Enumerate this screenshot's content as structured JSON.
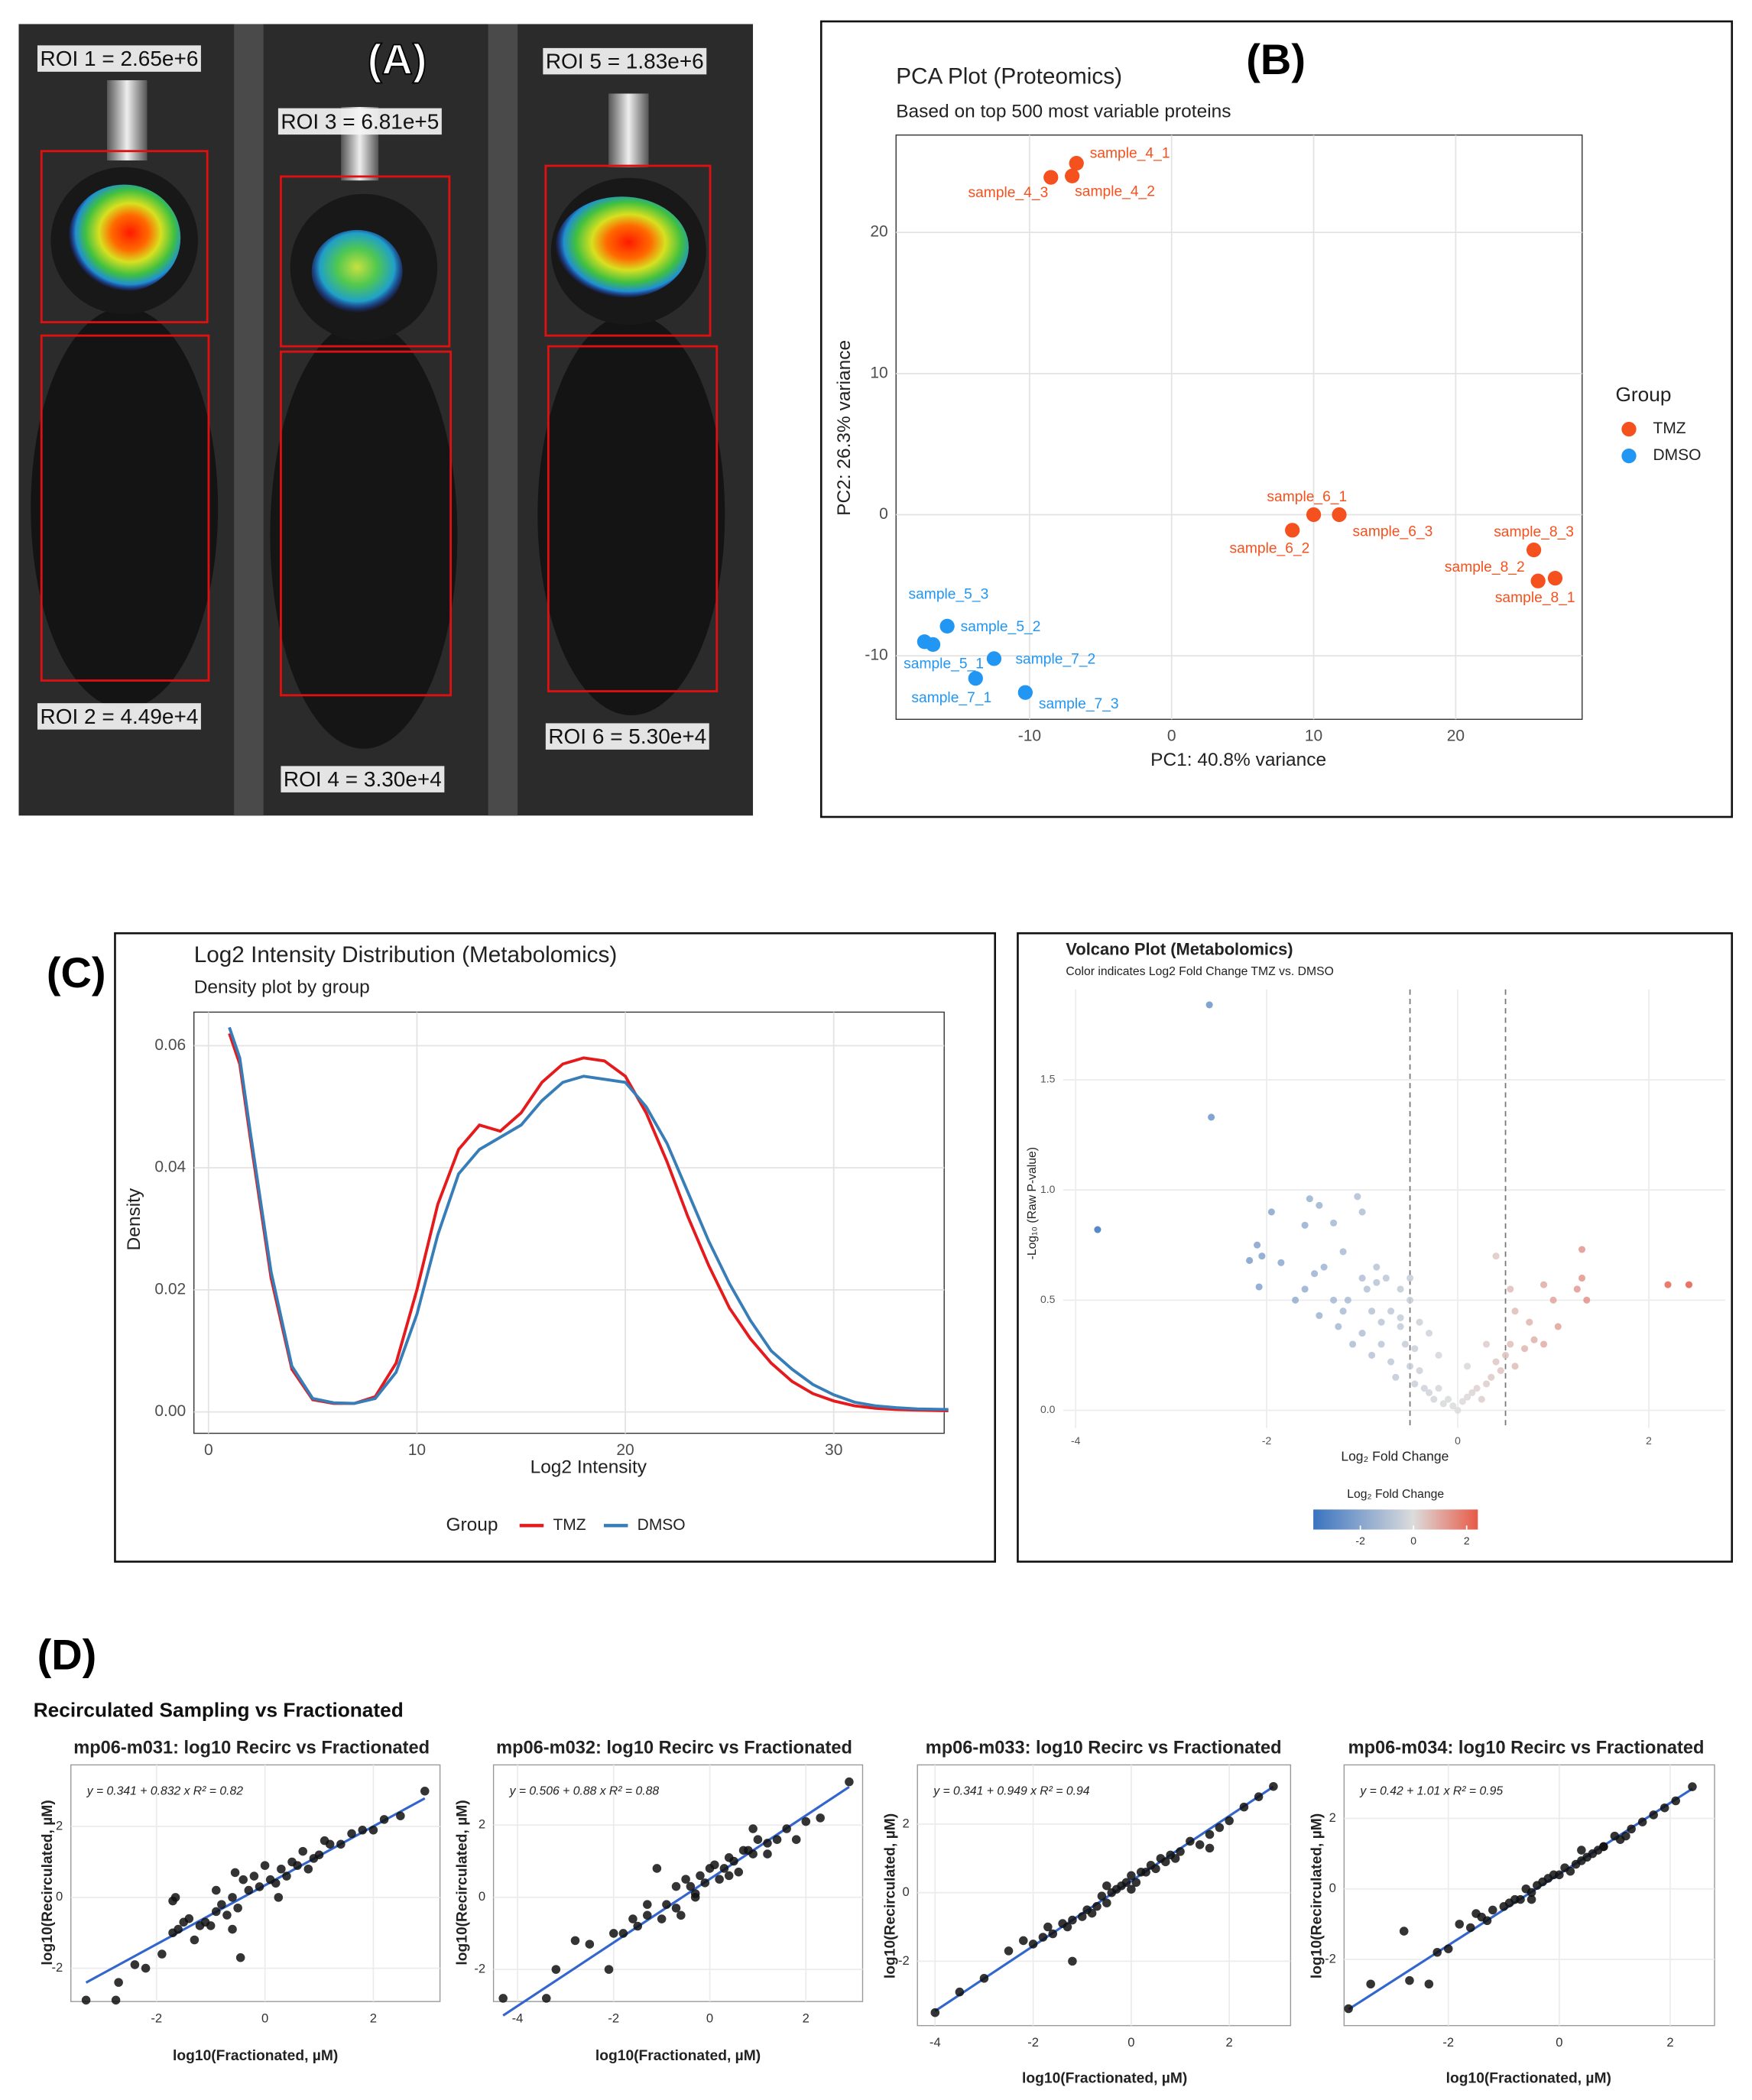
{
  "panel_labels": [
    "(A)",
    "(B)",
    "(C)",
    "(D)"
  ],
  "image_panel": {
    "roi_labels": [
      "ROI 1 = 2.65e+6",
      "ROI 2 = 4.49e+4",
      "ROI 3 = 6.81e+5",
      "ROI 4 = 3.30e+4",
      "ROI 5 = 1.83e+6",
      "ROI 6 = 5.30e+4"
    ]
  },
  "section_title": "Recirculated Sampling vs Fractionated",
  "chart_data": [
    {
      "type": "scatter",
      "title": "PCA Plot (Proteomics)",
      "subtitle": "Based on top 500 most variable proteins",
      "x_label": "PC1: 40.8% variance",
      "y_label": "PC2: 26.3% variance",
      "legend_title": "Group",
      "legend": "right",
      "grid": true,
      "xlim": [
        -19.4,
        28.9
      ],
      "ylim": [
        -14.5,
        26.9
      ],
      "xticks": [
        -10,
        0,
        10,
        20
      ],
      "yticks": [
        -10,
        0,
        10,
        20
      ],
      "series": [
        {
          "name": "TMZ",
          "color": "#F4511E",
          "x": [
            -6.7,
            -7.0,
            -8.5,
            10.0,
            8.5,
            11.8,
            27.0,
            25.8,
            25.5
          ],
          "values": [
            24.9,
            24.0,
            23.9,
            0.0,
            -1.1,
            0.0,
            -4.5,
            -4.7,
            -2.5
          ],
          "point_labels": [
            "sample_4_1",
            "sample_4_2",
            "sample_4_3",
            "sample_6_1",
            "sample_6_2",
            "sample_6_3",
            "sample_8_1",
            "sample_8_2",
            "sample_8_3"
          ]
        },
        {
          "name": "DMSO",
          "color": "#2196F3",
          "x": [
            -16.8,
            -15.8,
            -17.4,
            -13.8,
            -12.5,
            -10.3
          ],
          "values": [
            -9.2,
            -7.9,
            -9.0,
            -11.6,
            -10.2,
            -12.6
          ],
          "point_labels": [
            "sample_5_1",
            "sample_5_2",
            "sample_5_3",
            "sample_7_1",
            "sample_7_2",
            "sample_7_3"
          ]
        }
      ]
    },
    {
      "type": "line",
      "title": "Log2 Intensity Distribution (Metabolomics)",
      "subtitle": "Density plot by group",
      "x_label": "Log2 Intensity",
      "y_label": "Density",
      "legend_title": "Group",
      "legend": "bottom",
      "grid": true,
      "xlim": [
        -0.7,
        35.3
      ],
      "ylim": [
        -0.0035,
        0.0655
      ],
      "xticks": [
        0,
        10,
        20,
        30
      ],
      "yticks": [
        {
          "value": 0,
          "label": "0.00"
        },
        0.02,
        0.04,
        0.06
      ],
      "x": [
        1,
        1.5,
        2,
        3,
        4,
        5,
        6,
        7,
        8,
        9,
        10,
        11,
        12,
        13,
        14,
        15,
        16,
        17,
        18,
        19,
        20,
        21,
        22,
        23,
        24,
        25,
        26,
        27,
        28,
        29,
        30,
        31,
        32,
        33,
        34,
        35.5
      ],
      "series": [
        {
          "name": "TMZ",
          "color": "#E41A1C",
          "values": [
            0.062,
            0.057,
            0.045,
            0.022,
            0.007,
            0.002,
            0.0014,
            0.0014,
            0.0025,
            0.008,
            0.02,
            0.034,
            0.043,
            0.047,
            0.046,
            0.049,
            0.054,
            0.057,
            0.058,
            0.0575,
            0.055,
            0.049,
            0.041,
            0.032,
            0.024,
            0.017,
            0.012,
            0.008,
            0.005,
            0.003,
            0.0018,
            0.001,
            0.0006,
            0.0004,
            0.0003,
            0.0002
          ]
        },
        {
          "name": "DMSO",
          "color": "#377EB8",
          "values": [
            0.063,
            0.058,
            0.046,
            0.023,
            0.0075,
            0.0022,
            0.0015,
            0.0014,
            0.0022,
            0.0065,
            0.016,
            0.029,
            0.039,
            0.043,
            0.045,
            0.047,
            0.051,
            0.054,
            0.055,
            0.0545,
            0.054,
            0.05,
            0.044,
            0.036,
            0.028,
            0.021,
            0.015,
            0.01,
            0.007,
            0.0045,
            0.0028,
            0.0016,
            0.001,
            0.0007,
            0.0005,
            0.0004
          ]
        }
      ]
    },
    {
      "type": "scatter",
      "title": "Volcano Plot (Metabolomics)",
      "subtitle": "Color indicates Log2 Fold Change TMZ vs. DMSO",
      "x_label": "Log₂ Fold Change",
      "y_label": "-Log₁₀ (Raw P-value)",
      "grid": true,
      "xlim": [
        -4.13,
        2.8
      ],
      "ylim": [
        -0.08,
        1.91
      ],
      "xticks": [
        -4,
        -2,
        0,
        2
      ],
      "yticks": [
        {
          "value": 0,
          "label": "0.0"
        },
        0.5,
        {
          "value": 1,
          "label": "1.0"
        },
        1.5
      ],
      "vlines": [
        -0.5,
        0.5
      ],
      "x": [
        -2.6,
        -2.58,
        -3.77,
        -1.95,
        -2.18,
        -2.1,
        -2.05,
        -1.85,
        -2.08,
        -1.55,
        -1.45,
        -1.05,
        -1.3,
        -1.0,
        -1.6,
        -1.2,
        -1.4,
        -1.5,
        -1.6,
        -1.7,
        -1.3,
        -1.2,
        -1.45,
        -1.25,
        -1.15,
        -1.0,
        -0.95,
        -0.85,
        -0.75,
        -0.6,
        -0.5,
        -0.9,
        -0.8,
        -0.7,
        -0.6,
        -0.55,
        -0.8,
        -1.0,
        -0.9,
        -0.7,
        -0.65,
        -0.5,
        -0.45,
        -0.4,
        -0.35,
        -0.3,
        -0.25,
        -0.2,
        -0.15,
        -0.1,
        -0.05,
        0.0,
        0.05,
        0.1,
        0.15,
        0.2,
        0.25,
        0.3,
        0.35,
        0.4,
        0.45,
        0.5,
        0.55,
        0.6,
        0.7,
        0.8,
        0.9,
        0.6,
        0.55,
        0.4,
        0.9,
        1.0,
        1.3,
        1.35,
        1.3,
        1.25,
        2.2,
        2.42,
        -0.3,
        -0.2,
        0.1,
        0.3,
        -0.4,
        -0.5,
        -0.45,
        -0.6,
        0.75,
        1.05,
        -1.1,
        -0.85
      ],
      "values": [
        1.84,
        1.33,
        0.82,
        0.9,
        0.68,
        0.75,
        0.7,
        0.67,
        0.56,
        0.96,
        0.93,
        0.97,
        0.85,
        0.9,
        0.84,
        0.72,
        0.65,
        0.62,
        0.55,
        0.5,
        0.5,
        0.45,
        0.43,
        0.38,
        0.5,
        0.6,
        0.55,
        0.58,
        0.6,
        0.55,
        0.5,
        0.45,
        0.4,
        0.45,
        0.38,
        0.3,
        0.3,
        0.35,
        0.25,
        0.22,
        0.15,
        0.2,
        0.12,
        0.18,
        0.1,
        0.08,
        0.05,
        0.1,
        0.03,
        0.05,
        0.02,
        0.0,
        0.04,
        0.06,
        0.08,
        0.1,
        0.05,
        0.12,
        0.15,
        0.22,
        0.18,
        0.25,
        0.3,
        0.2,
        0.28,
        0.32,
        0.3,
        0.45,
        0.55,
        0.7,
        0.57,
        0.5,
        0.73,
        0.5,
        0.6,
        0.55,
        0.57,
        0.57,
        0.35,
        0.25,
        0.2,
        0.3,
        0.4,
        0.6,
        0.28,
        0.42,
        0.4,
        0.38,
        0.3,
        0.65
      ],
      "colorbar": {
        "title": "Log₂ Fold Change",
        "limits": [
          -3.77,
          2.42
        ],
        "ticks": [
          -2,
          0,
          2
        ],
        "low": "#3A73C0",
        "mid": "#DCDCDC",
        "high": "#E85A47"
      }
    },
    {
      "type": "scatter",
      "title": "mp06-m031: log10 Recirc vs Fractionated",
      "annotation": "y = 0.341 + 0.832 x   R² = 0.82",
      "fit": {
        "intercept": 0.341,
        "slope": 0.832,
        "color": "#3366CC"
      },
      "color": "#111111",
      "x_label": "log10(Fractionated, µM)",
      "y_label": "log10(Recirculated, µM)",
      "grid": true,
      "xlim": [
        -3.58,
        3.23
      ],
      "ylim": [
        -2.94,
        3.74
      ],
      "xticks": [
        -2,
        0,
        2
      ],
      "yticks": [
        -2,
        0,
        2
      ],
      "x": [
        -3.3,
        -2.75,
        -2.7,
        -2.4,
        -2.2,
        -1.9,
        -1.7,
        -1.6,
        -1.5,
        -1.4,
        -1.3,
        -1.2,
        -1.1,
        -1.0,
        -0.9,
        -0.8,
        -0.7,
        -0.6,
        -0.5,
        -0.45,
        -0.4,
        -0.3,
        -0.2,
        -0.1,
        0,
        0.1,
        0.2,
        0.3,
        0.4,
        0.5,
        0.6,
        0.7,
        0.8,
        0.9,
        1.0,
        1.1,
        1.2,
        1.4,
        1.6,
        1.8,
        2.0,
        2.2,
        2.5,
        2.95,
        -1.65,
        -0.55,
        -0.6,
        -1.7,
        -0.9,
        0.25
      ],
      "values": [
        -2.9,
        -2.9,
        -2.4,
        -1.9,
        -2.0,
        -1.6,
        -1.0,
        -0.9,
        -0.7,
        -0.6,
        -1.2,
        -0.8,
        -0.7,
        -0.8,
        -0.4,
        -0.2,
        -0.5,
        0.0,
        -0.3,
        -1.7,
        0.5,
        0.2,
        0.6,
        0.3,
        0.9,
        0.5,
        0.4,
        0.8,
        0.6,
        1.0,
        0.9,
        1.3,
        0.8,
        1.1,
        1.2,
        1.6,
        1.5,
        1.5,
        1.8,
        1.9,
        1.9,
        2.2,
        2.3,
        3.0,
        0.0,
        0.7,
        -0.9,
        -0.1,
        0.2,
        0.0
      ]
    },
    {
      "type": "scatter",
      "title": "mp06-m032: log10 Recirc vs Fractionated",
      "annotation": "y = 0.506 + 0.88 x   R² = 0.88",
      "fit": {
        "intercept": 0.506,
        "slope": 0.88,
        "color": "#3366CC"
      },
      "color": "#111111",
      "x_label": "log10(Fractionated, µM)",
      "y_label": "log10(Recirculated, µM)",
      "grid": true,
      "xlim": [
        -4.5,
        3.18
      ],
      "ylim": [
        -2.89,
        3.67
      ],
      "xticks": [
        -4,
        -2,
        0,
        2
      ],
      "yticks": [
        -2,
        0,
        2
      ],
      "x": [
        -4.3,
        -3.4,
        -3.2,
        -2.8,
        -2.5,
        -2.1,
        -2.0,
        -1.8,
        -1.6,
        -1.5,
        -1.3,
        -1.1,
        -1.0,
        -0.9,
        -0.7,
        -0.6,
        -0.5,
        -0.4,
        -0.3,
        -0.2,
        -0.1,
        0,
        0.1,
        0.2,
        0.3,
        0.4,
        0.5,
        0.6,
        0.7,
        0.8,
        0.9,
        1.0,
        1.2,
        1.4,
        1.6,
        1.8,
        2.0,
        2.3,
        2.9,
        -1.3,
        -0.3,
        0.9,
        -0.7,
        0.4,
        1.2
      ],
      "values": [
        -2.8,
        -2.8,
        -2.0,
        -1.2,
        -1.3,
        -2.0,
        -1.0,
        -1.0,
        -0.6,
        -0.8,
        -0.5,
        0.8,
        -0.6,
        -0.2,
        -0.3,
        -0.5,
        0.5,
        0.3,
        0.1,
        0.6,
        0.4,
        0.8,
        0.9,
        0.5,
        0.8,
        1.1,
        1.0,
        0.7,
        1.3,
        1.3,
        1.2,
        1.6,
        1.2,
        1.6,
        1.9,
        1.6,
        2.1,
        2.2,
        3.2,
        -0.2,
        0.0,
        1.9,
        0.3,
        0.6,
        1.5
      ]
    },
    {
      "type": "scatter",
      "title": "mp06-m033: log10 Recirc vs Fractionated",
      "annotation": "y = 0.341 + 0.949 x   R² = 0.94",
      "fit": {
        "intercept": 0.341,
        "slope": 0.949,
        "color": "#3366CC"
      },
      "color": "#111111",
      "x_label": "log10(Fractionated, µM)",
      "y_label": "log10(Recirculated, µM)",
      "grid": true,
      "xlim": [
        -4.36,
        3.25
      ],
      "ylim": [
        -3.88,
        3.73
      ],
      "xticks": [
        -4,
        -2,
        0,
        2
      ],
      "yticks": [
        -2,
        0,
        2
      ],
      "x": [
        -4.0,
        -3.5,
        -3.0,
        -2.5,
        -2.2,
        -2.0,
        -1.8,
        -1.6,
        -1.4,
        -1.3,
        -1.2,
        -1.0,
        -0.9,
        -0.8,
        -0.7,
        -0.6,
        -0.5,
        -0.4,
        -0.3,
        -0.2,
        -0.1,
        0,
        0.1,
        0.2,
        0.3,
        0.4,
        0.5,
        0.6,
        0.7,
        0.8,
        1.0,
        1.2,
        1.4,
        1.6,
        1.8,
        2.0,
        2.3,
        2.6,
        2.9,
        -1.7,
        -1.2,
        0.0,
        0.9,
        1.6,
        -0.5
      ],
      "values": [
        -3.5,
        -2.9,
        -2.5,
        -1.7,
        -1.4,
        -1.5,
        -1.3,
        -1.2,
        -0.9,
        -1.0,
        -0.8,
        -0.7,
        -0.5,
        -0.6,
        -0.4,
        -0.1,
        -0.3,
        0.0,
        0.1,
        0.2,
        0.3,
        0.5,
        0.3,
        0.6,
        0.6,
        0.8,
        0.7,
        1.0,
        0.9,
        1.1,
        1.2,
        1.5,
        1.4,
        1.7,
        1.9,
        2.1,
        2.5,
        2.8,
        3.1,
        -1.0,
        -2.0,
        0.1,
        1.0,
        1.3,
        0.2
      ]
    },
    {
      "type": "scatter",
      "title": "mp06-m034: log10 Recirc vs Fractionated",
      "annotation": "y = 0.42 + 1.01 x   R² = 0.95",
      "fit": {
        "intercept": 0.42,
        "slope": 1.01,
        "color": "#3366CC"
      },
      "color": "#111111",
      "x_label": "log10(Fractionated, µM)",
      "y_label": "log10(Recirculated, µM)",
      "grid": true,
      "xlim": [
        -3.88,
        2.8
      ],
      "ylim": [
        -3.88,
        3.52
      ],
      "xticks": [
        -2,
        0,
        2
      ],
      "yticks": [
        -2,
        0,
        2
      ],
      "x": [
        -3.8,
        -3.4,
        -2.8,
        -2.7,
        -2.35,
        -2.2,
        -2.0,
        -1.8,
        -1.6,
        -1.4,
        -1.2,
        -1.0,
        -0.9,
        -0.8,
        -0.7,
        -0.6,
        -0.5,
        -0.4,
        -0.3,
        -0.2,
        -0.1,
        0,
        0.1,
        0.2,
        0.3,
        0.4,
        0.5,
        0.6,
        0.7,
        0.8,
        1.0,
        1.1,
        1.3,
        1.5,
        1.7,
        1.9,
        2.1,
        2.4,
        -1.3,
        -0.5,
        0.4,
        1.2,
        -1.5,
        0.8
      ],
      "values": [
        -3.4,
        -2.7,
        -1.2,
        -2.6,
        -2.7,
        -1.8,
        -1.7,
        -1.0,
        -1.1,
        -0.8,
        -0.6,
        -0.5,
        -0.4,
        -0.3,
        -0.3,
        0.0,
        -0.1,
        0.1,
        0.2,
        0.3,
        0.4,
        0.4,
        0.6,
        0.5,
        0.7,
        0.8,
        0.9,
        1.0,
        1.1,
        1.2,
        1.5,
        1.4,
        1.7,
        1.9,
        2.1,
        2.3,
        2.5,
        2.9,
        -0.9,
        -0.3,
        1.1,
        1.5,
        -0.7,
        1.2
      ]
    }
  ]
}
